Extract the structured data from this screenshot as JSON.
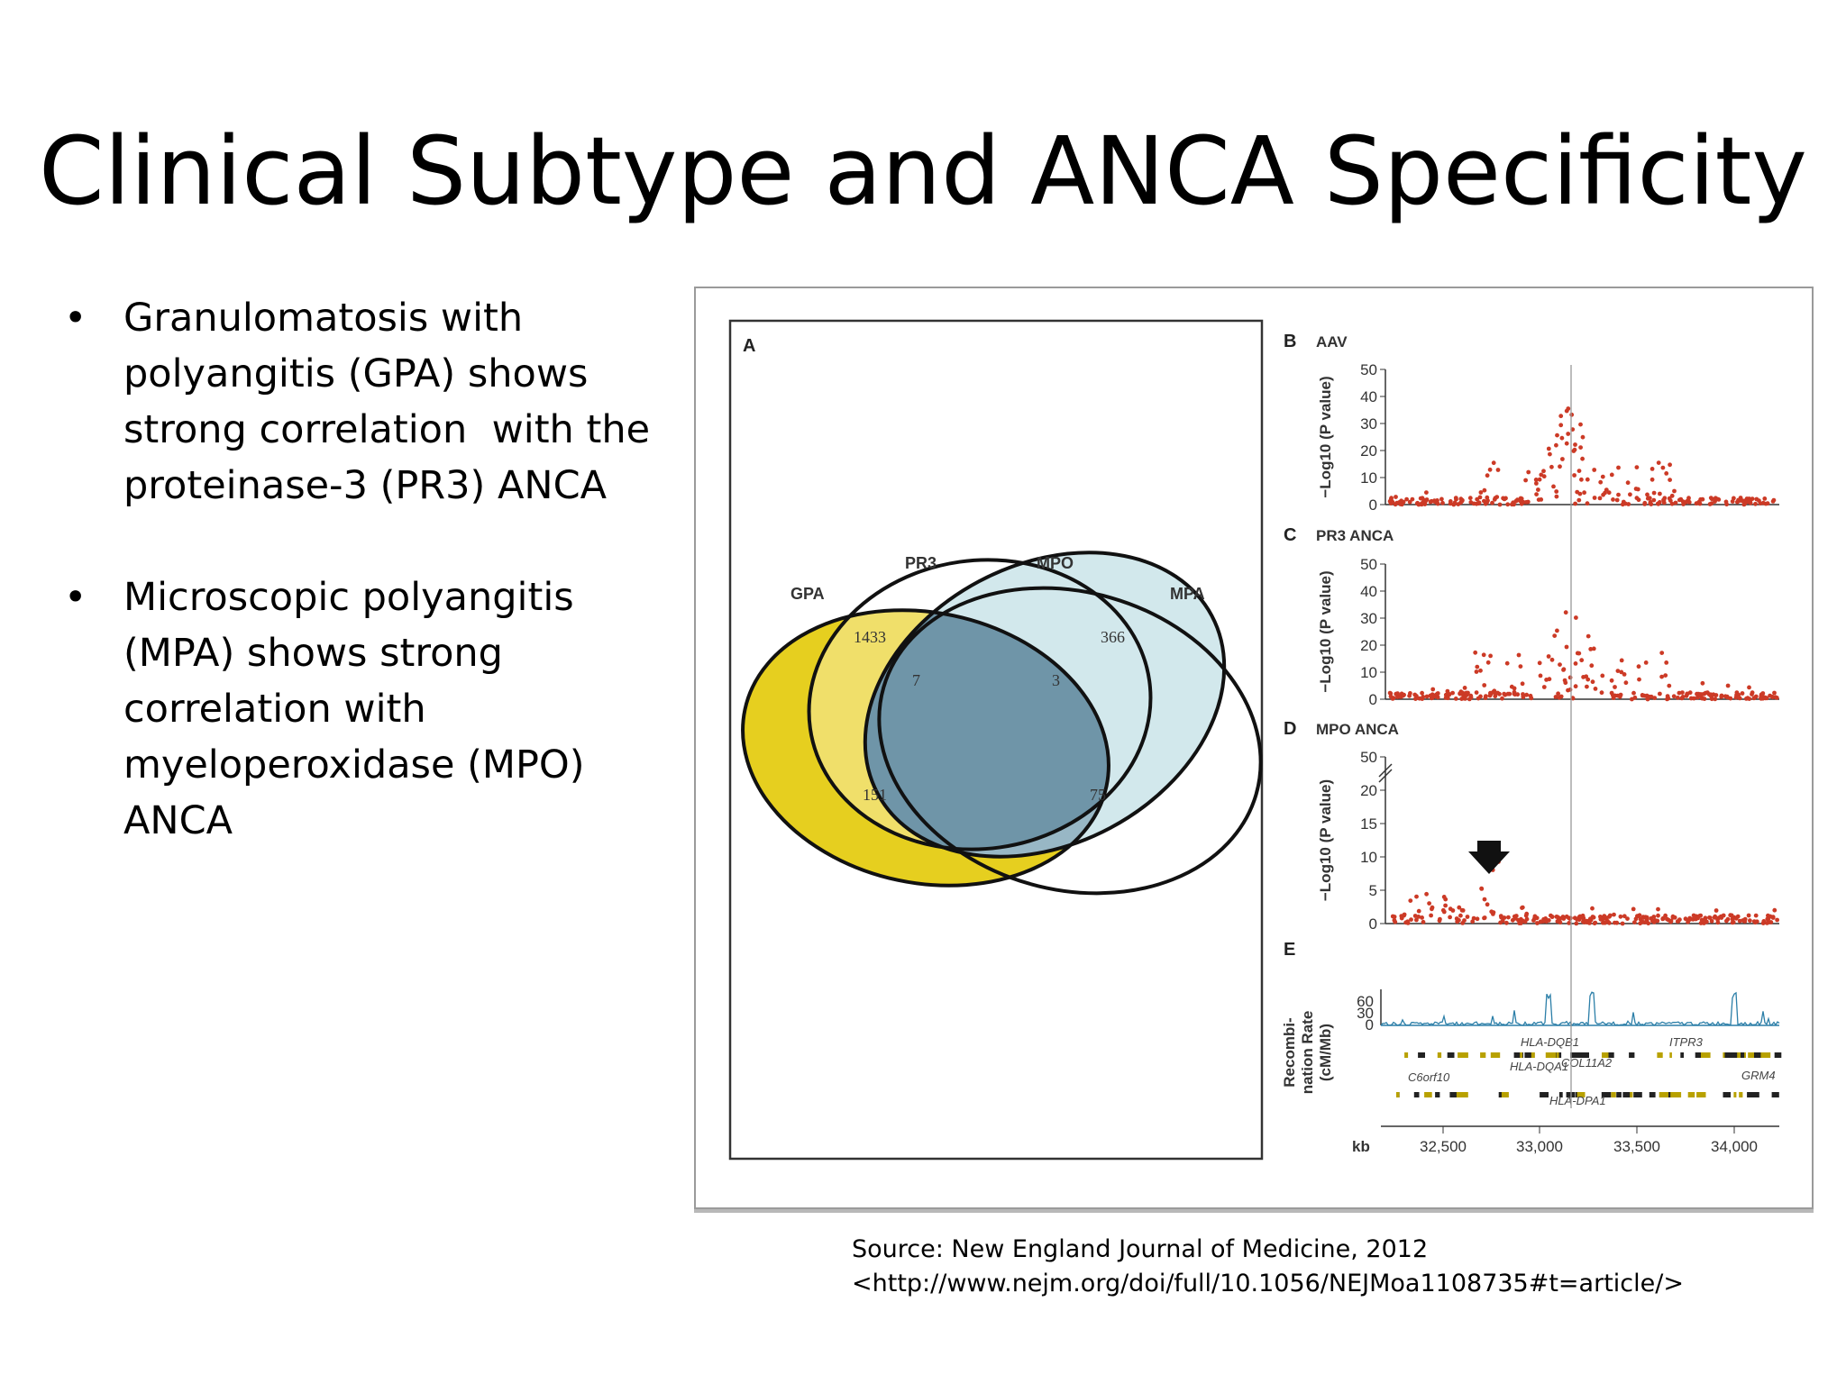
{
  "slide": {
    "title": "Clinical Subtype and ANCA Specificity",
    "bullets": [
      {
        "lines": [
          "Granulomatosis with",
          "polyangitis (GPA) shows",
          "strong correlation  with the",
          "proteinase-3 (PR3) ANCA"
        ]
      },
      {
        "lines": [
          "Microscopic polyangitis",
          "(MPA) shows strong",
          "correlation with",
          "myeloperoxidase (MPO)",
          "ANCA"
        ]
      }
    ],
    "bullet_symbol": "•",
    "source_lines": [
      "Source: New England Journal of Medicine, 2012",
      "<http://www.nejm.org/doi/full/10.1056/NEJMoa1108735#t=article/>"
    ]
  },
  "figure": {
    "venn": {
      "panel_letter": "A",
      "sets": [
        "GPA",
        "PR3",
        "MPO",
        "MPA"
      ],
      "counts": [
        "1433",
        "7",
        "3",
        "366",
        "151",
        "75"
      ],
      "colors": {
        "gpa": "#e6cf1f",
        "pr3": "#f0df6a",
        "overlap_dark": "#6f95a8",
        "overlap_mid": "#98b7c5",
        "mpo": "#d2e8ec"
      }
    },
    "panels": [
      {
        "letter": "B",
        "title": "AAV",
        "ylabel": "−Log10 (P value)",
        "yticks": [
          "0",
          "10",
          "20",
          "30",
          "40",
          "50"
        ]
      },
      {
        "letter": "C",
        "title": "PR3 ANCA",
        "ylabel": "−Log10 (P value)",
        "yticks": [
          "0",
          "10",
          "20",
          "30",
          "40",
          "50"
        ]
      },
      {
        "letter": "D",
        "title": "MPO ANCA",
        "ylabel": "−Log10 (P value)",
        "yticks": [
          "0",
          "5",
          "10",
          "15",
          "20",
          "50"
        ]
      }
    ],
    "recomb": {
      "letter": "E",
      "ylabel_lines": [
        "Recombi-",
        "nation Rate",
        "(cM/Mb)"
      ],
      "yticks": [
        "0",
        "30",
        "60"
      ],
      "genes": [
        "HLA-DQB1",
        "ITPR3",
        "HLA-DQA1",
        "COL11A2",
        "C6orf10",
        "GRM4",
        "HLA-DPA1"
      ]
    },
    "xaxis": {
      "unit": "kb",
      "ticks": [
        "32,500",
        "33,000",
        "33,500",
        "34,000"
      ]
    },
    "point_color": "#cc3a26",
    "line_color": "#2c7fa8"
  }
}
